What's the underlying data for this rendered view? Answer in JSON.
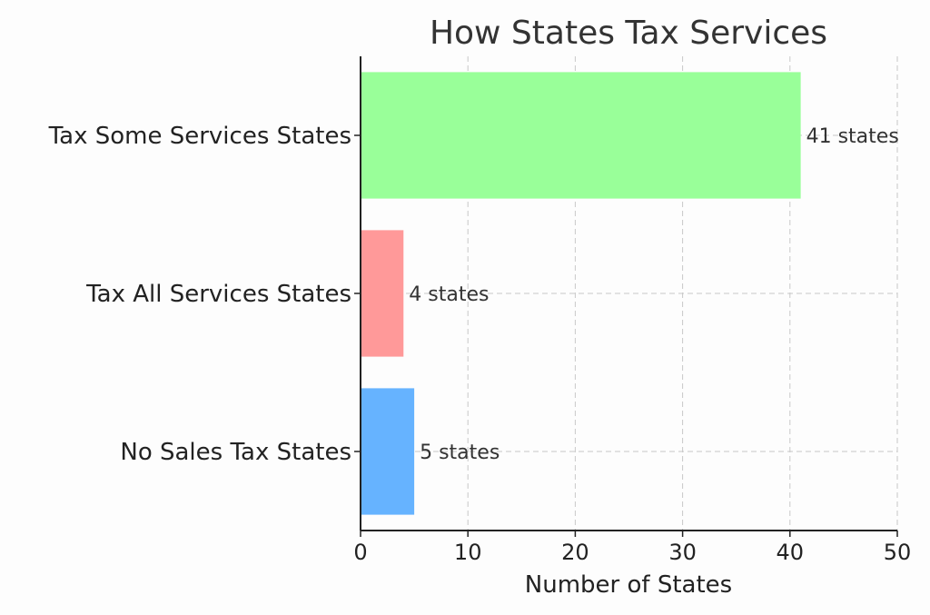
{
  "chart_data": {
    "type": "bar",
    "orientation": "horizontal",
    "title": "How States Tax Services",
    "xlabel": "Number of States",
    "ylabel": "",
    "xlim": [
      0,
      50
    ],
    "xticks": [
      0,
      10,
      20,
      30,
      40,
      50
    ],
    "grid": true,
    "categories": [
      "No Sales Tax States",
      "Tax All Services States",
      "Tax Some Services States"
    ],
    "values": [
      5,
      4,
      41
    ],
    "data_labels": [
      "5 states",
      "4 states",
      "41 states"
    ],
    "colors": [
      "#66b3ff",
      "#ff9999",
      "#99ff99"
    ]
  }
}
